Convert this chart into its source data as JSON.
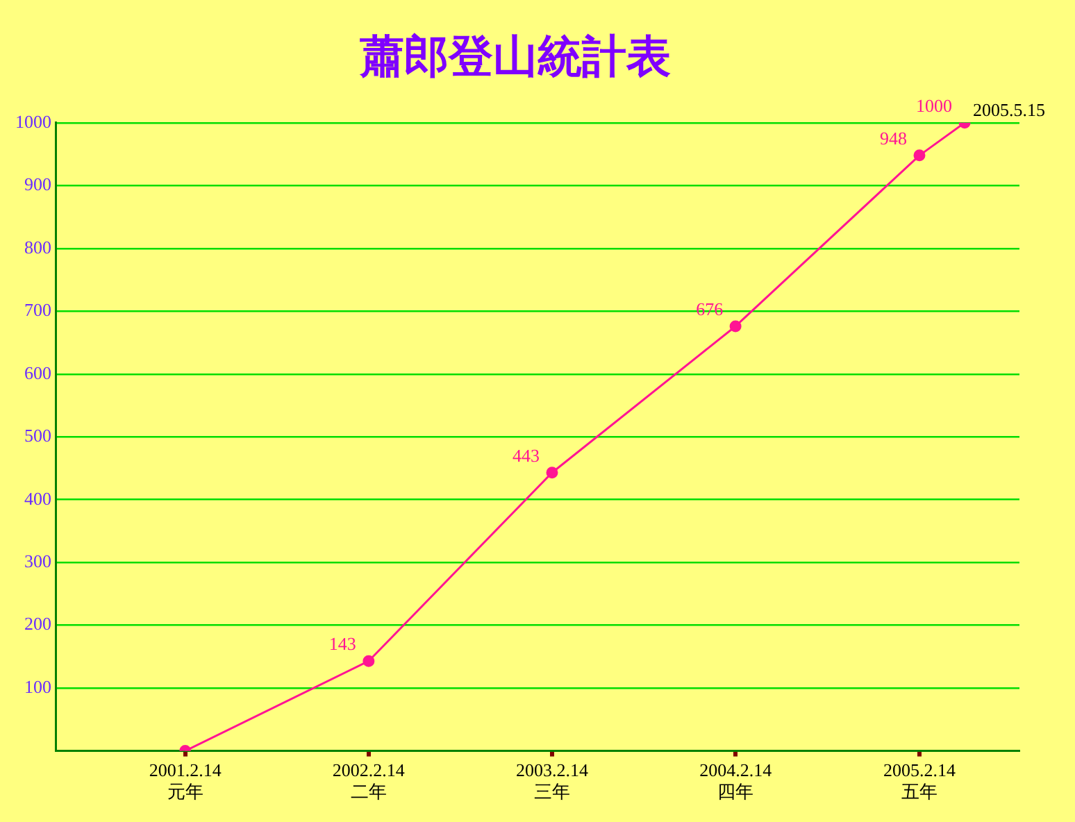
{
  "chart_data": {
    "type": "line",
    "title": "蕭郎登山統計表",
    "x": [
      "2001-02-14",
      "2002-02-14",
      "2003-02-14",
      "2004-02-14",
      "2005-02-14",
      "2005-05-15"
    ],
    "series": [
      {
        "color": "#ff1493",
        "values": [
          0,
          143,
          443,
          676,
          948,
          1000
        ],
        "value_labels": [
          null,
          "143",
          "443",
          "676",
          "948",
          "1000"
        ]
      }
    ],
    "xlim": [
      "2000-06-01",
      "2005-09-01"
    ],
    "xticks": [
      {
        "value": "2001-02-14",
        "label": "2001.2.14\n元年"
      },
      {
        "value": "2002-02-14",
        "label": "2002.2.14\n二年"
      },
      {
        "value": "2003-02-14",
        "label": "2003.2.14\n三年"
      },
      {
        "value": "2004-02-14",
        "label": "2004.2.14\n四年"
      },
      {
        "value": "2005-02-14",
        "label": "2005.2.14\n五年"
      }
    ],
    "ylim": [
      0,
      1000
    ],
    "yticks": [
      100,
      200,
      300,
      400,
      500,
      600,
      700,
      800,
      900,
      1000
    ],
    "annotations": [
      {
        "text": "2005.5.15",
        "x": "2005-05-15",
        "y": 1000
      }
    ],
    "grid": "y",
    "legend": false,
    "marker": "circle",
    "line_style": "solid"
  }
}
